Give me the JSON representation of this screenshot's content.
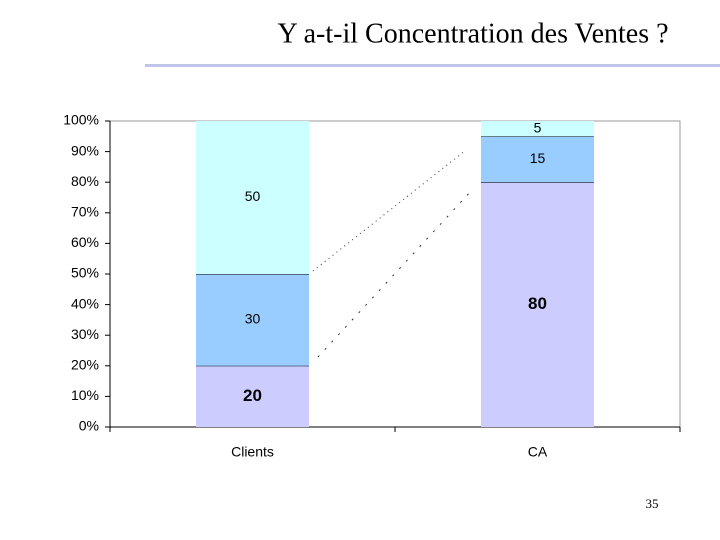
{
  "chart_data": {
    "type": "stacked_bar_100",
    "title": "Y a-t-il Concentration des Ventes ?",
    "page_number": "35",
    "categories": [
      "Clients",
      "CA"
    ],
    "series": [
      {
        "color": "#ccccff",
        "values": [
          20,
          80
        ]
      },
      {
        "color": "#99ccff",
        "values": [
          30,
          15
        ]
      },
      {
        "color": "#ccffff",
        "values": [
          50,
          5
        ]
      }
    ],
    "ylim": [
      0,
      100
    ],
    "yticks": [
      {
        "value": 0,
        "label": "0%"
      },
      {
        "value": 10,
        "label": "10%"
      },
      {
        "value": 20,
        "label": "20%"
      },
      {
        "value": 30,
        "label": "30%"
      },
      {
        "value": 40,
        "label": "40%"
      },
      {
        "value": 50,
        "label": "50%"
      },
      {
        "value": 60,
        "label": "60%"
      },
      {
        "value": 70,
        "label": "70%"
      },
      {
        "value": 80,
        "label": "80%"
      },
      {
        "value": 90,
        "label": "90%"
      },
      {
        "value": 100,
        "label": "100%"
      }
    ],
    "grid": false
  }
}
